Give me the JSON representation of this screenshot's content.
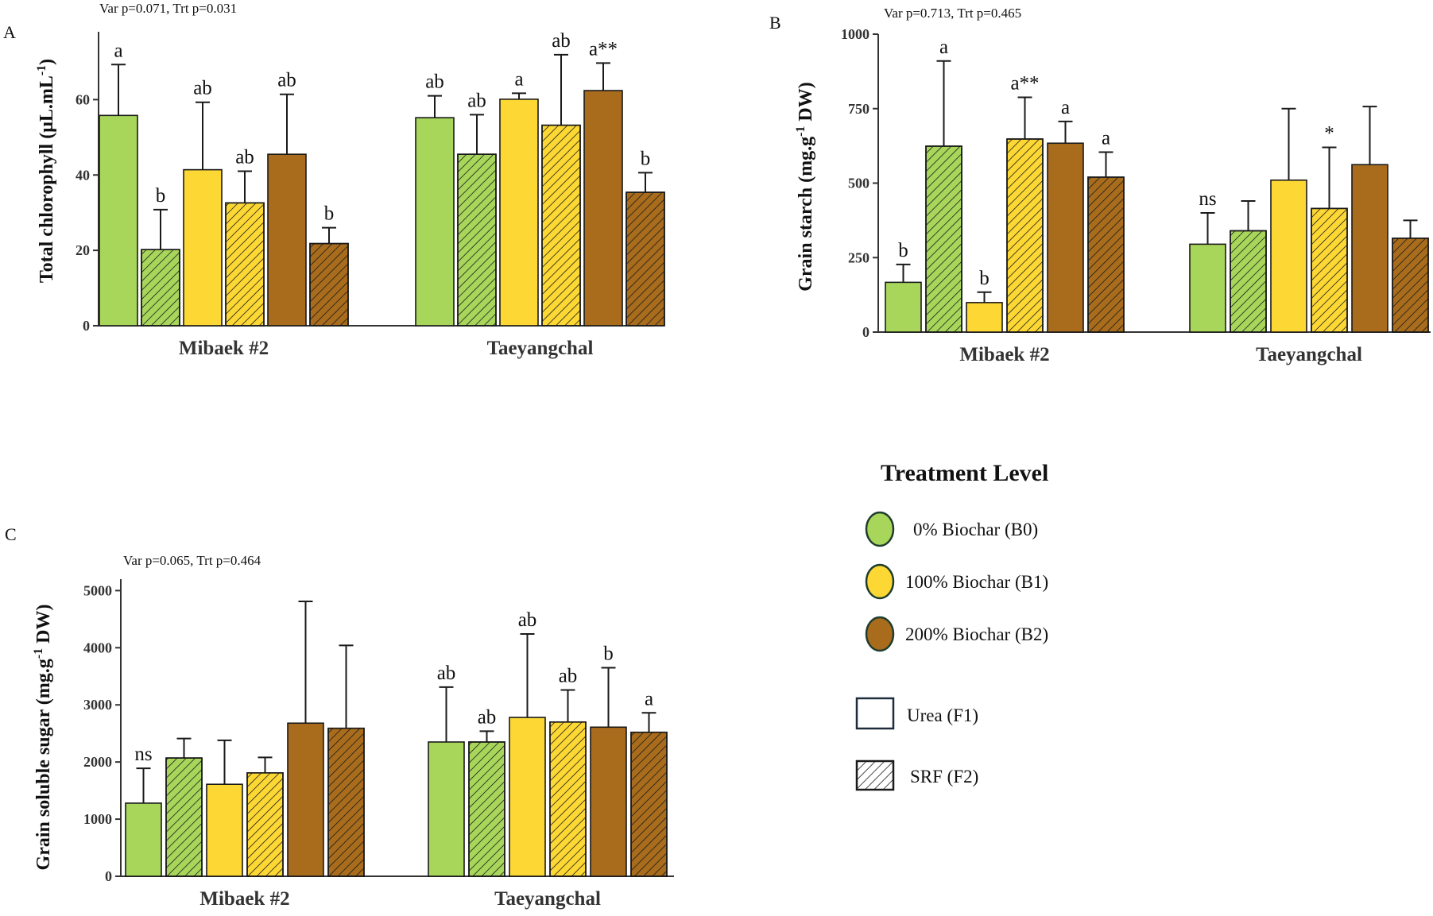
{
  "colors": {
    "B0": "#a8d65b",
    "B1": "#fdd835",
    "B2": "#a86c1c",
    "bar_outline": "#1a1a1a",
    "hatch": "#1a1a1a",
    "legend_circle_outline": "#1f3d2e"
  },
  "chart_data": [
    {
      "panel": "A",
      "type": "bar",
      "stats": "Var p=0.071, Trt p=0.031",
      "ylabel": "Total chlorophyll (μL.mL",
      "ylabel_sup": "-1",
      "ylabel_suffix": ")",
      "ylim": [
        0,
        78
      ],
      "yticks": [
        0,
        20,
        40,
        60
      ],
      "categories": [
        "Mibaek #2",
        "Taeyangchal"
      ],
      "series_order": [
        "B0F1",
        "B0F2",
        "B1F1",
        "B1F2",
        "B2F1",
        "B2F2"
      ],
      "groups": [
        {
          "category": "Mibaek #2",
          "values": [
            55.8,
            20.2,
            41.4,
            32.6,
            45.5,
            21.8
          ],
          "errors": [
            13.5,
            10.6,
            17.9,
            8.4,
            15.9,
            4.2
          ],
          "labels": [
            "a",
            "b",
            "ab",
            "ab",
            "ab",
            "b"
          ]
        },
        {
          "category": "Taeyangchal",
          "values": [
            55.2,
            45.5,
            60.1,
            53.2,
            62.4,
            35.4
          ],
          "errors": [
            5.8,
            10.5,
            1.6,
            18.7,
            7.3,
            5.2
          ],
          "labels": [
            "ab",
            "ab",
            "a",
            "ab",
            "a**",
            "b"
          ]
        }
      ]
    },
    {
      "panel": "B",
      "type": "bar",
      "stats": "Var p=0.713, Trt p=0.465",
      "ylabel": "Grain starch (mg.g",
      "ylabel_sup": "-1",
      "ylabel_suffix": " DW)",
      "ylim": [
        0,
        1000
      ],
      "yticks": [
        0,
        250,
        500,
        750,
        1000
      ],
      "categories": [
        "Mibaek #2",
        "Taeyangchal"
      ],
      "series_order": [
        "B0F1",
        "B0F2",
        "B1F1",
        "B1F2",
        "B2F1",
        "B2F2"
      ],
      "groups": [
        {
          "category": "Mibaek #2",
          "values": [
            167,
            624,
            99,
            648,
            634,
            520
          ],
          "errors": [
            60,
            286,
            35,
            140,
            73,
            84
          ],
          "labels": [
            "b",
            "a",
            "b",
            "a**",
            "a",
            "a"
          ]
        },
        {
          "category": "Taeyangchal",
          "values": [
            295,
            340,
            510,
            415,
            562,
            315
          ],
          "errors": [
            105,
            100,
            240,
            205,
            195,
            60
          ],
          "labels": [
            "ns",
            "",
            "",
            "*",
            "",
            ""
          ]
        }
      ]
    },
    {
      "panel": "C",
      "type": "bar",
      "stats": "Var p=0.065, Trt p=0.464",
      "ylabel": "Grain  soluble sugar (mg.g",
      "ylabel_sup": "-1",
      "ylabel_suffix": " DW)",
      "ylim": [
        0,
        5200
      ],
      "yticks": [
        0,
        1000,
        2000,
        3000,
        4000,
        5000
      ],
      "categories": [
        "Mibaek #2",
        "Taeyangchal"
      ],
      "series_order": [
        "B0F1",
        "B0F2",
        "B1F1",
        "B1F2",
        "B2F1",
        "B2F2"
      ],
      "groups": [
        {
          "category": "Mibaek #2",
          "values": [
            1280,
            2070,
            1610,
            1810,
            2680,
            2590
          ],
          "errors": [
            610,
            340,
            770,
            270,
            2130,
            1450
          ],
          "labels": [
            "ns",
            "",
            "",
            "",
            "",
            ""
          ]
        },
        {
          "category": "Taeyangchal",
          "values": [
            2350,
            2350,
            2780,
            2700,
            2610,
            2520
          ],
          "errors": [
            960,
            190,
            1460,
            560,
            1040,
            340
          ],
          "labels": [
            "ab",
            "ab",
            "ab",
            "ab",
            "b",
            "a"
          ]
        }
      ]
    }
  ],
  "legend": {
    "title": "Treatment Level",
    "biochar": [
      {
        "key": "B0",
        "label": "0%  Biochar (B0)"
      },
      {
        "key": "B1",
        "label": "100%  Biochar (B1)"
      },
      {
        "key": "B2",
        "label": "200%  Biochar (B2)"
      }
    ],
    "fertilizer": [
      {
        "key": "F1",
        "label": "Urea (F1)",
        "pattern": "none"
      },
      {
        "key": "F2",
        "label": "SRF (F2)",
        "pattern": "hatch"
      }
    ]
  }
}
